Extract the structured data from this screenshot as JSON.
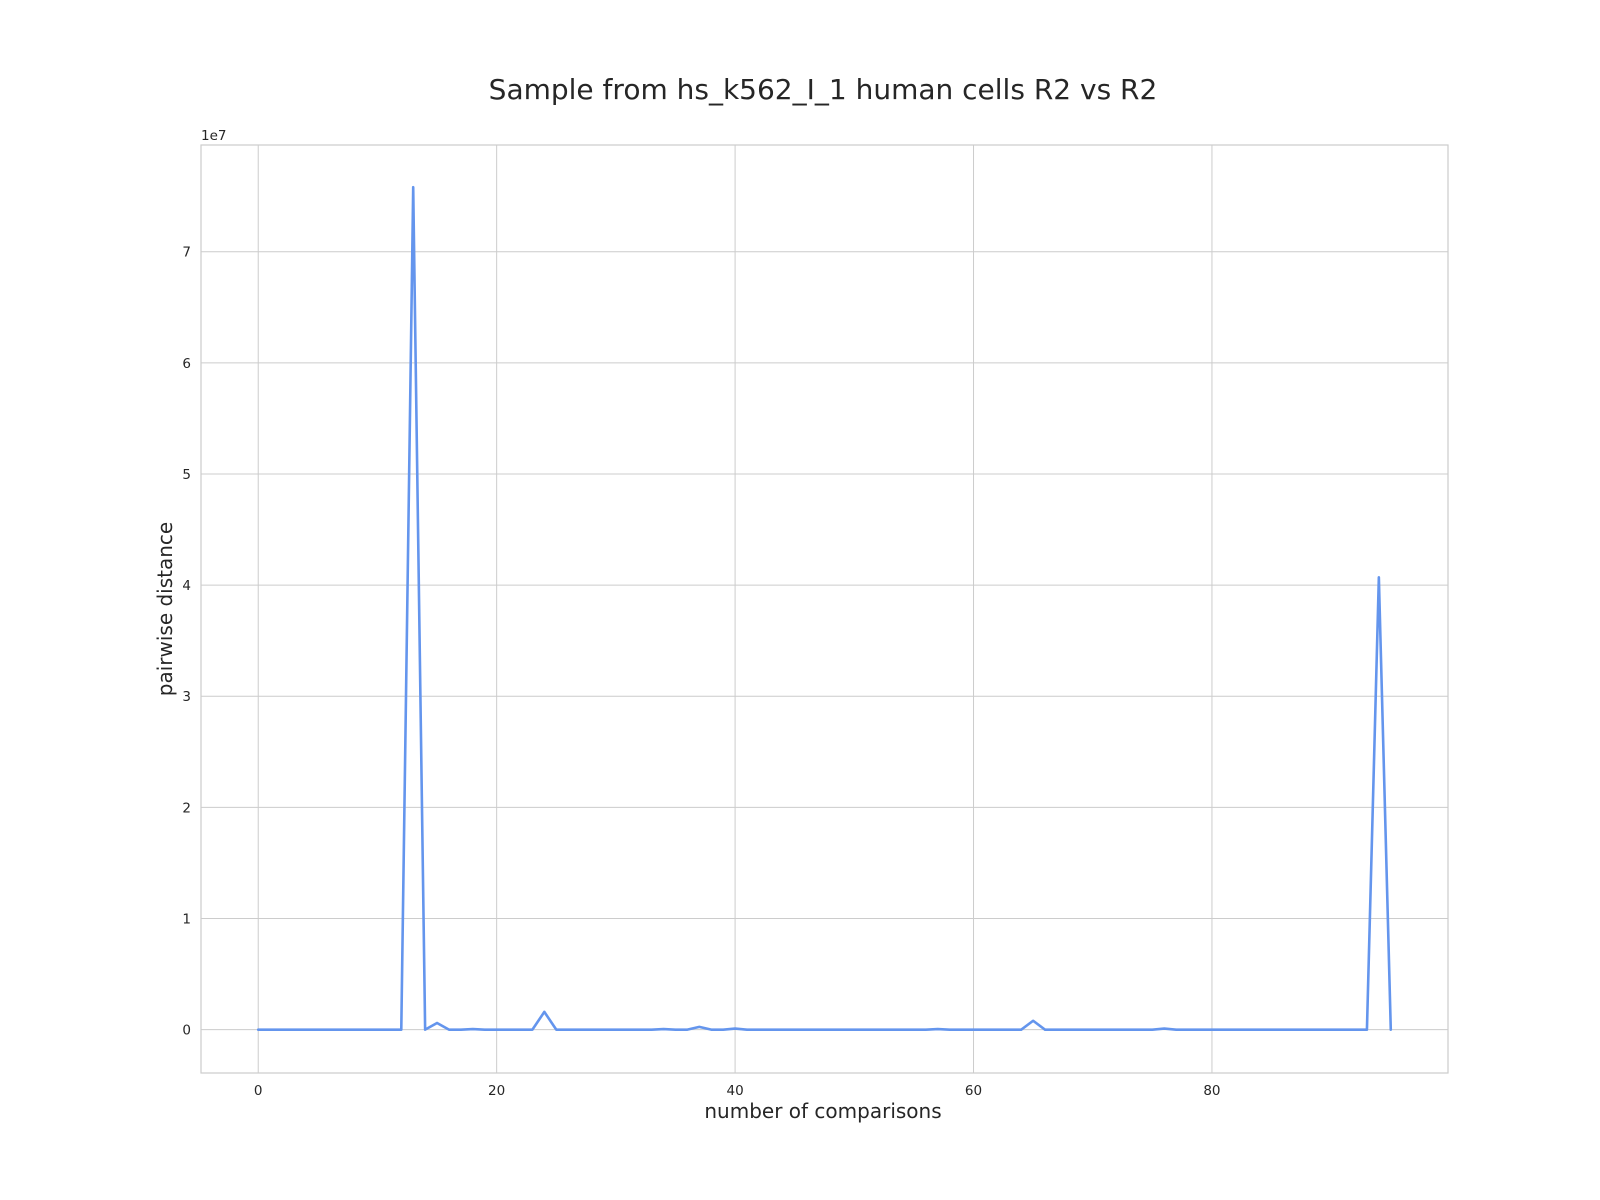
{
  "chart_data": {
    "type": "line",
    "title": "Sample from hs_k562_I_1 human cells R2 vs R2",
    "xlabel": "number of comparisons",
    "ylabel": "pairwise distance",
    "y_offset_label": "1e7",
    "xlim": [
      -4.8,
      99.8
    ],
    "ylim": [
      -3900000,
      79600000
    ],
    "x_ticks": [
      0,
      20,
      40,
      60,
      80
    ],
    "y_ticks": [
      0,
      10000000,
      20000000,
      30000000,
      40000000,
      50000000,
      60000000,
      70000000
    ],
    "y_tick_labels": [
      "0",
      "1",
      "2",
      "3",
      "4",
      "5",
      "6",
      "7"
    ],
    "grid": true,
    "colors": {
      "line": "#6495ed",
      "grid": "#cccccc",
      "text": "#262626"
    },
    "series": [
      {
        "color": "#6495ed",
        "x": [
          0,
          1,
          2,
          3,
          4,
          5,
          6,
          7,
          8,
          9,
          10,
          11,
          12,
          13,
          14,
          15,
          16,
          17,
          18,
          19,
          20,
          21,
          22,
          23,
          24,
          25,
          26,
          27,
          28,
          29,
          30,
          31,
          32,
          33,
          34,
          35,
          36,
          37,
          38,
          39,
          40,
          41,
          42,
          43,
          44,
          45,
          46,
          47,
          48,
          49,
          50,
          51,
          52,
          53,
          54,
          55,
          56,
          57,
          58,
          59,
          60,
          61,
          62,
          63,
          64,
          65,
          66,
          67,
          68,
          69,
          70,
          71,
          72,
          73,
          74,
          75,
          76,
          77,
          78,
          79,
          80,
          81,
          82,
          83,
          84,
          85,
          86,
          87,
          88,
          89,
          90,
          91,
          92,
          93,
          94,
          95
        ],
        "values": [
          0,
          0,
          0,
          0,
          0,
          0,
          0,
          0,
          0,
          0,
          0,
          0,
          0,
          75800000,
          0,
          600000,
          0,
          0,
          50000,
          0,
          0,
          0,
          0,
          0,
          1600000,
          0,
          0,
          0,
          0,
          0,
          0,
          0,
          0,
          0,
          50000,
          0,
          0,
          250000,
          0,
          0,
          100000,
          0,
          0,
          0,
          0,
          0,
          0,
          0,
          0,
          0,
          0,
          0,
          0,
          0,
          0,
          0,
          0,
          50000,
          0,
          0,
          0,
          0,
          0,
          0,
          0,
          800000,
          0,
          0,
          0,
          0,
          0,
          0,
          0,
          0,
          0,
          0,
          100000,
          0,
          0,
          0,
          0,
          0,
          0,
          0,
          0,
          0,
          0,
          0,
          0,
          0,
          0,
          0,
          0,
          0,
          40700000,
          0
        ]
      }
    ]
  }
}
